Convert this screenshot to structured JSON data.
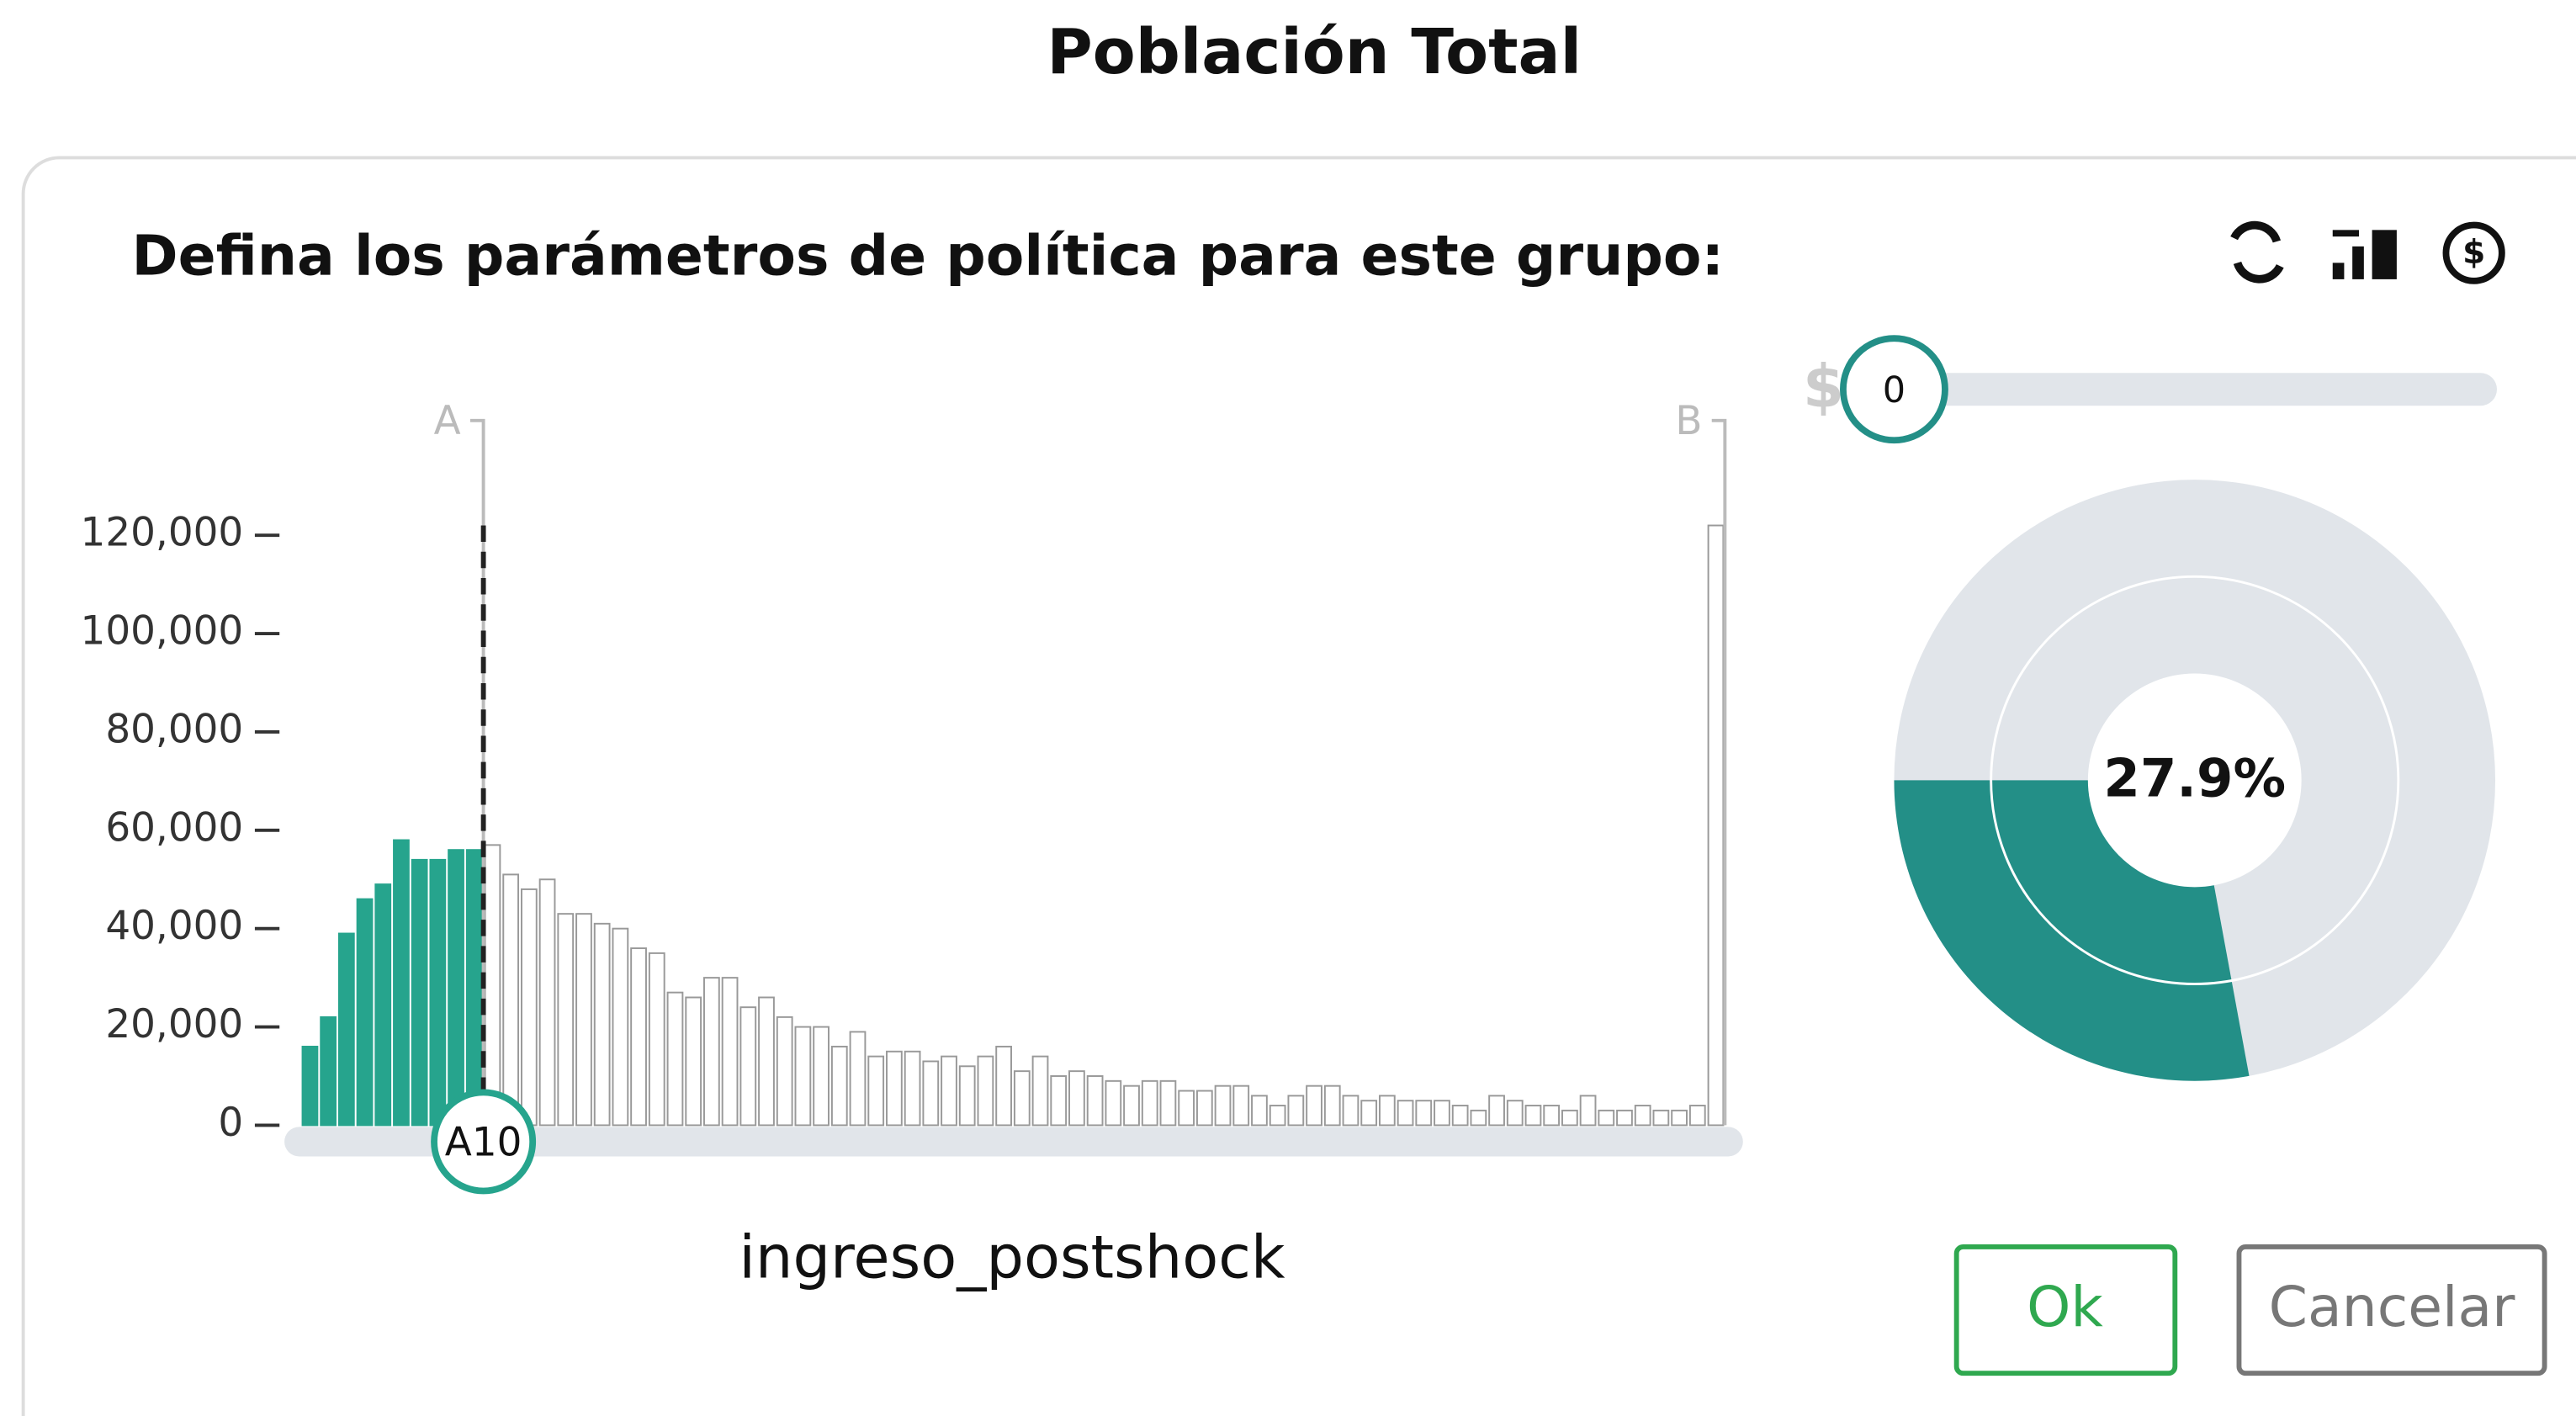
{
  "header": {
    "title": "Población Total"
  },
  "panel": {
    "prompt": "Defina los parámetros de política para este grupo:",
    "slider": {
      "prefix": "$",
      "value": 0
    },
    "donut": {
      "value": 27.9,
      "label": "27.9%",
      "color": "#238f87",
      "rest_color": "#e1e5ea"
    },
    "buttons": {
      "ok": "Ok",
      "cancel": "Cancelar"
    }
  },
  "chart_data": {
    "type": "bar",
    "x_label": "ingreso_postshock",
    "range_labels": [
      "A",
      "B"
    ],
    "marker_label": "A10",
    "ylim": [
      0,
      140000
    ],
    "yticks": [
      {
        "value": 0,
        "label": "0"
      },
      {
        "value": 20000,
        "label": "20,000"
      },
      {
        "value": 40000,
        "label": "40,000"
      },
      {
        "value": 60000,
        "label": "60,000"
      },
      {
        "value": 80000,
        "label": "80,000"
      },
      {
        "value": 100000,
        "label": "100,000"
      },
      {
        "value": 120000,
        "label": "120,000"
      }
    ],
    "series": [
      {
        "color": "#26a48d",
        "values": [
          16000,
          22000,
          39000,
          46000,
          49000,
          58000,
          54000,
          54000,
          56000,
          56000,
          null,
          null,
          null,
          null,
          null,
          null,
          null,
          null,
          null,
          null,
          null,
          null,
          null,
          null,
          null,
          null,
          null,
          null,
          null,
          null,
          null,
          null,
          null,
          null,
          null,
          null,
          null,
          null,
          null,
          null,
          null,
          null,
          null,
          null,
          null,
          null,
          null,
          null,
          null,
          null,
          null,
          null,
          null,
          null,
          null,
          null,
          null,
          null,
          null,
          null,
          null,
          null,
          null,
          null,
          null,
          null,
          null,
          null,
          null,
          null,
          null,
          null,
          null,
          null,
          null,
          null,
          null,
          null
        ]
      },
      {
        "color": "#ffffff",
        "values": [
          null,
          null,
          null,
          null,
          null,
          null,
          null,
          null,
          null,
          null,
          57000,
          51000,
          48000,
          50000,
          43000,
          43000,
          41000,
          40000,
          36000,
          35000,
          27000,
          26000,
          30000,
          30000,
          24000,
          26000,
          22000,
          20000,
          20000,
          16000,
          19000,
          14000,
          15000,
          15000,
          13000,
          14000,
          12000,
          14000,
          16000,
          11000,
          14000,
          10000,
          11000,
          10000,
          9000,
          8000,
          9000,
          9000,
          7000,
          7000,
          8000,
          8000,
          6000,
          4000,
          6000,
          8000,
          8000,
          6000,
          5000,
          6000,
          5000,
          5000,
          5000,
          4000,
          3000,
          6000,
          5000,
          4000,
          4000,
          3000,
          6000,
          3000,
          3000,
          4000,
          3000,
          3000,
          4000,
          122000
        ]
      }
    ]
  }
}
